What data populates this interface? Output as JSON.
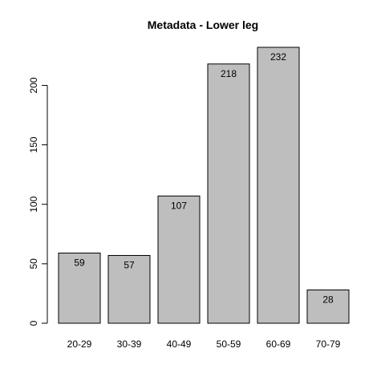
{
  "chart_data": {
    "type": "bar",
    "title": "Metadata - Lower leg",
    "xlabel": "",
    "ylabel": "",
    "categories": [
      "20-29",
      "30-39",
      "40-49",
      "50-59",
      "60-69",
      "70-79"
    ],
    "values": [
      59,
      57,
      107,
      218,
      232,
      28
    ],
    "data_labels": [
      "59",
      "57",
      "107",
      "218",
      "232",
      "28"
    ],
    "ylim": [
      0,
      232
    ],
    "yticks": [
      0,
      50,
      100,
      150,
      200
    ],
    "ytick_labels": [
      "0",
      "50",
      "100",
      "150",
      "200"
    ],
    "grid": false,
    "legend": "none",
    "bar_color": "#bebebe",
    "border_color": "#000000"
  }
}
